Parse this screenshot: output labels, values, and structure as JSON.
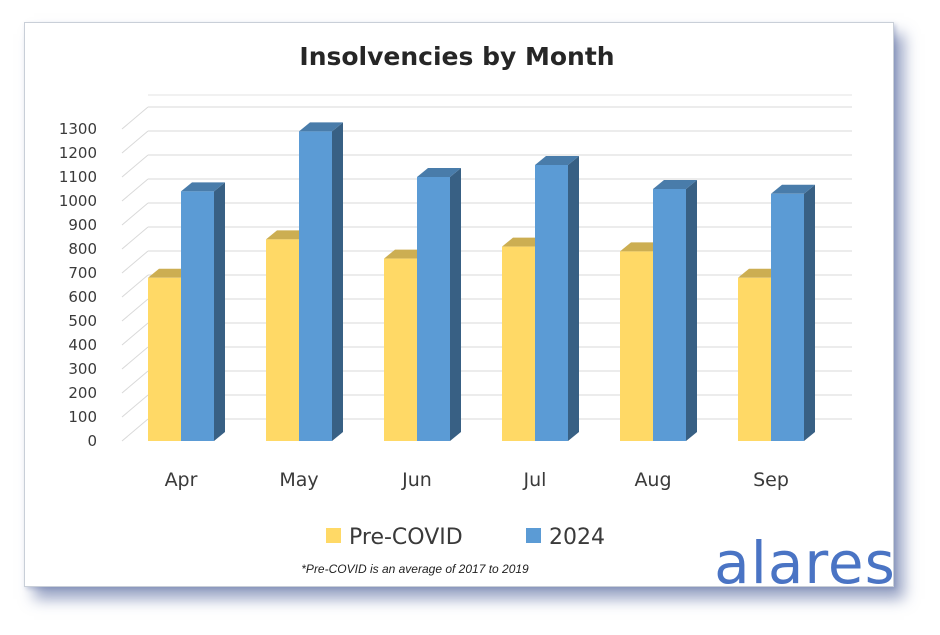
{
  "chart_data": {
    "type": "bar",
    "title": "Insolvencies by Month",
    "categories": [
      "Apr",
      "May",
      "Jun",
      "Jul",
      "Aug",
      "Sep"
    ],
    "series": [
      {
        "name": "Pre-COVID",
        "color": "#FFD966",
        "values": [
          680,
          840,
          760,
          810,
          790,
          680
        ]
      },
      {
        "name": "2024",
        "color": "#5B9BD5",
        "values": [
          1040,
          1290,
          1100,
          1150,
          1050,
          1030
        ]
      }
    ],
    "y_ticks": [
      "0",
      "100",
      "200",
      "300",
      "400",
      "500",
      "600",
      "700",
      "800",
      "900",
      "1000",
      "1100",
      "1200",
      "1300"
    ],
    "ylim": [
      0,
      1350
    ],
    "grid": true,
    "legend_position": "bottom",
    "style": "3d-clustered-column"
  },
  "footnote": "*Pre-COVID is an average of 2017 to 2019",
  "logo_text": "alares"
}
